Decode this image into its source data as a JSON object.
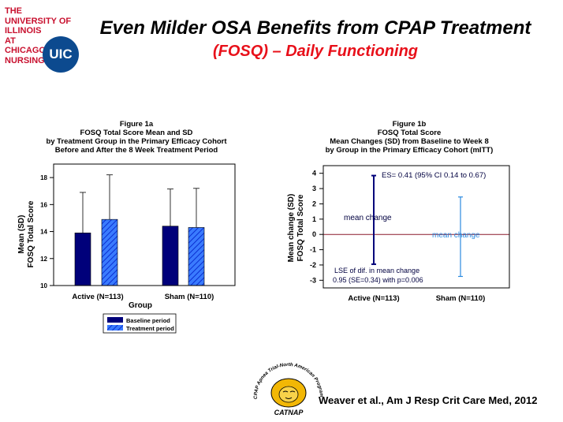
{
  "logo": {
    "lines": [
      "THE",
      "UNIVERSITY OF",
      "ILLINOIS",
      "AT",
      "CHICAGO",
      "NURSING"
    ],
    "badge": "UIC",
    "color": "#c8102e",
    "badge_color": "#0c4a8f"
  },
  "slide": {
    "title": "Even Milder OSA Benefits from CPAP Treatment",
    "subtitle": "(FOSQ) – Daily Functioning",
    "citation": "Weaver et al., Am J Resp Crit Care Med, 2012"
  },
  "catnap_logo": {
    "arc_text": "CPAP Apnea Trial-North American Program",
    "label": "CATNAP"
  },
  "chart_data": [
    {
      "type": "bar",
      "title_lines": [
        "Figure 1a",
        "FOSQ Total Score Mean and SD",
        "by Treatment Group in the Primary Efficacy Cohort",
        "Before and After the 8 Week Treatment Period"
      ],
      "categories": [
        "Active (N=113)",
        "Sham (N=110)"
      ],
      "series": [
        {
          "name": "Baseline period",
          "values": [
            13.9,
            14.4
          ],
          "sd": [
            3.0,
            2.75
          ],
          "color": "#00007a"
        },
        {
          "name": "Treatment period",
          "values": [
            14.9,
            14.3
          ],
          "sd": [
            3.3,
            2.9
          ],
          "color": "#1f5fff",
          "pattern": "hatched"
        }
      ],
      "ylabel_lines": [
        "Mean (SD)",
        "FOSQ Total Score"
      ],
      "xlabel": "Group",
      "ylim": [
        10,
        19
      ],
      "yticks": [
        10,
        12,
        14,
        16,
        18
      ],
      "legend_position": "bottom"
    },
    {
      "type": "error-bar",
      "title_lines": [
        "Figure 1b",
        "FOSQ Total Score",
        "Mean Changes (SD) from Baseline to Week 8",
        "by Group in the Primary Efficacy Cohort (mITT)"
      ],
      "categories": [
        "Active (N=113)",
        "Sham (N=110)"
      ],
      "series": [
        {
          "name": "Active",
          "mean": 0.95,
          "low": -1.95,
          "high": 3.85,
          "color": "#00007a"
        },
        {
          "name": "Sham",
          "mean": -0.15,
          "low": -2.75,
          "high": 2.45,
          "color": "#2b8ae0"
        }
      ],
      "ylabel_lines": [
        "Mean change (SD)",
        "FOSQ Total Score"
      ],
      "ylim": [
        -3.5,
        4.5
      ],
      "yticks": [
        -3,
        -2,
        -1,
        0,
        1,
        2,
        3,
        4
      ],
      "reference_line": {
        "y": 0,
        "color": "#8b1a2b"
      },
      "annotations": {
        "es": "ES= 0.41 (95% CI 0.14 to 0.67)",
        "active_label": "mean change",
        "sham_label": "mean change",
        "lse_line1": "LSE of dif. in mean change",
        "lse_line2": "0.95 (SE=0.34) with p=0.006"
      }
    }
  ]
}
